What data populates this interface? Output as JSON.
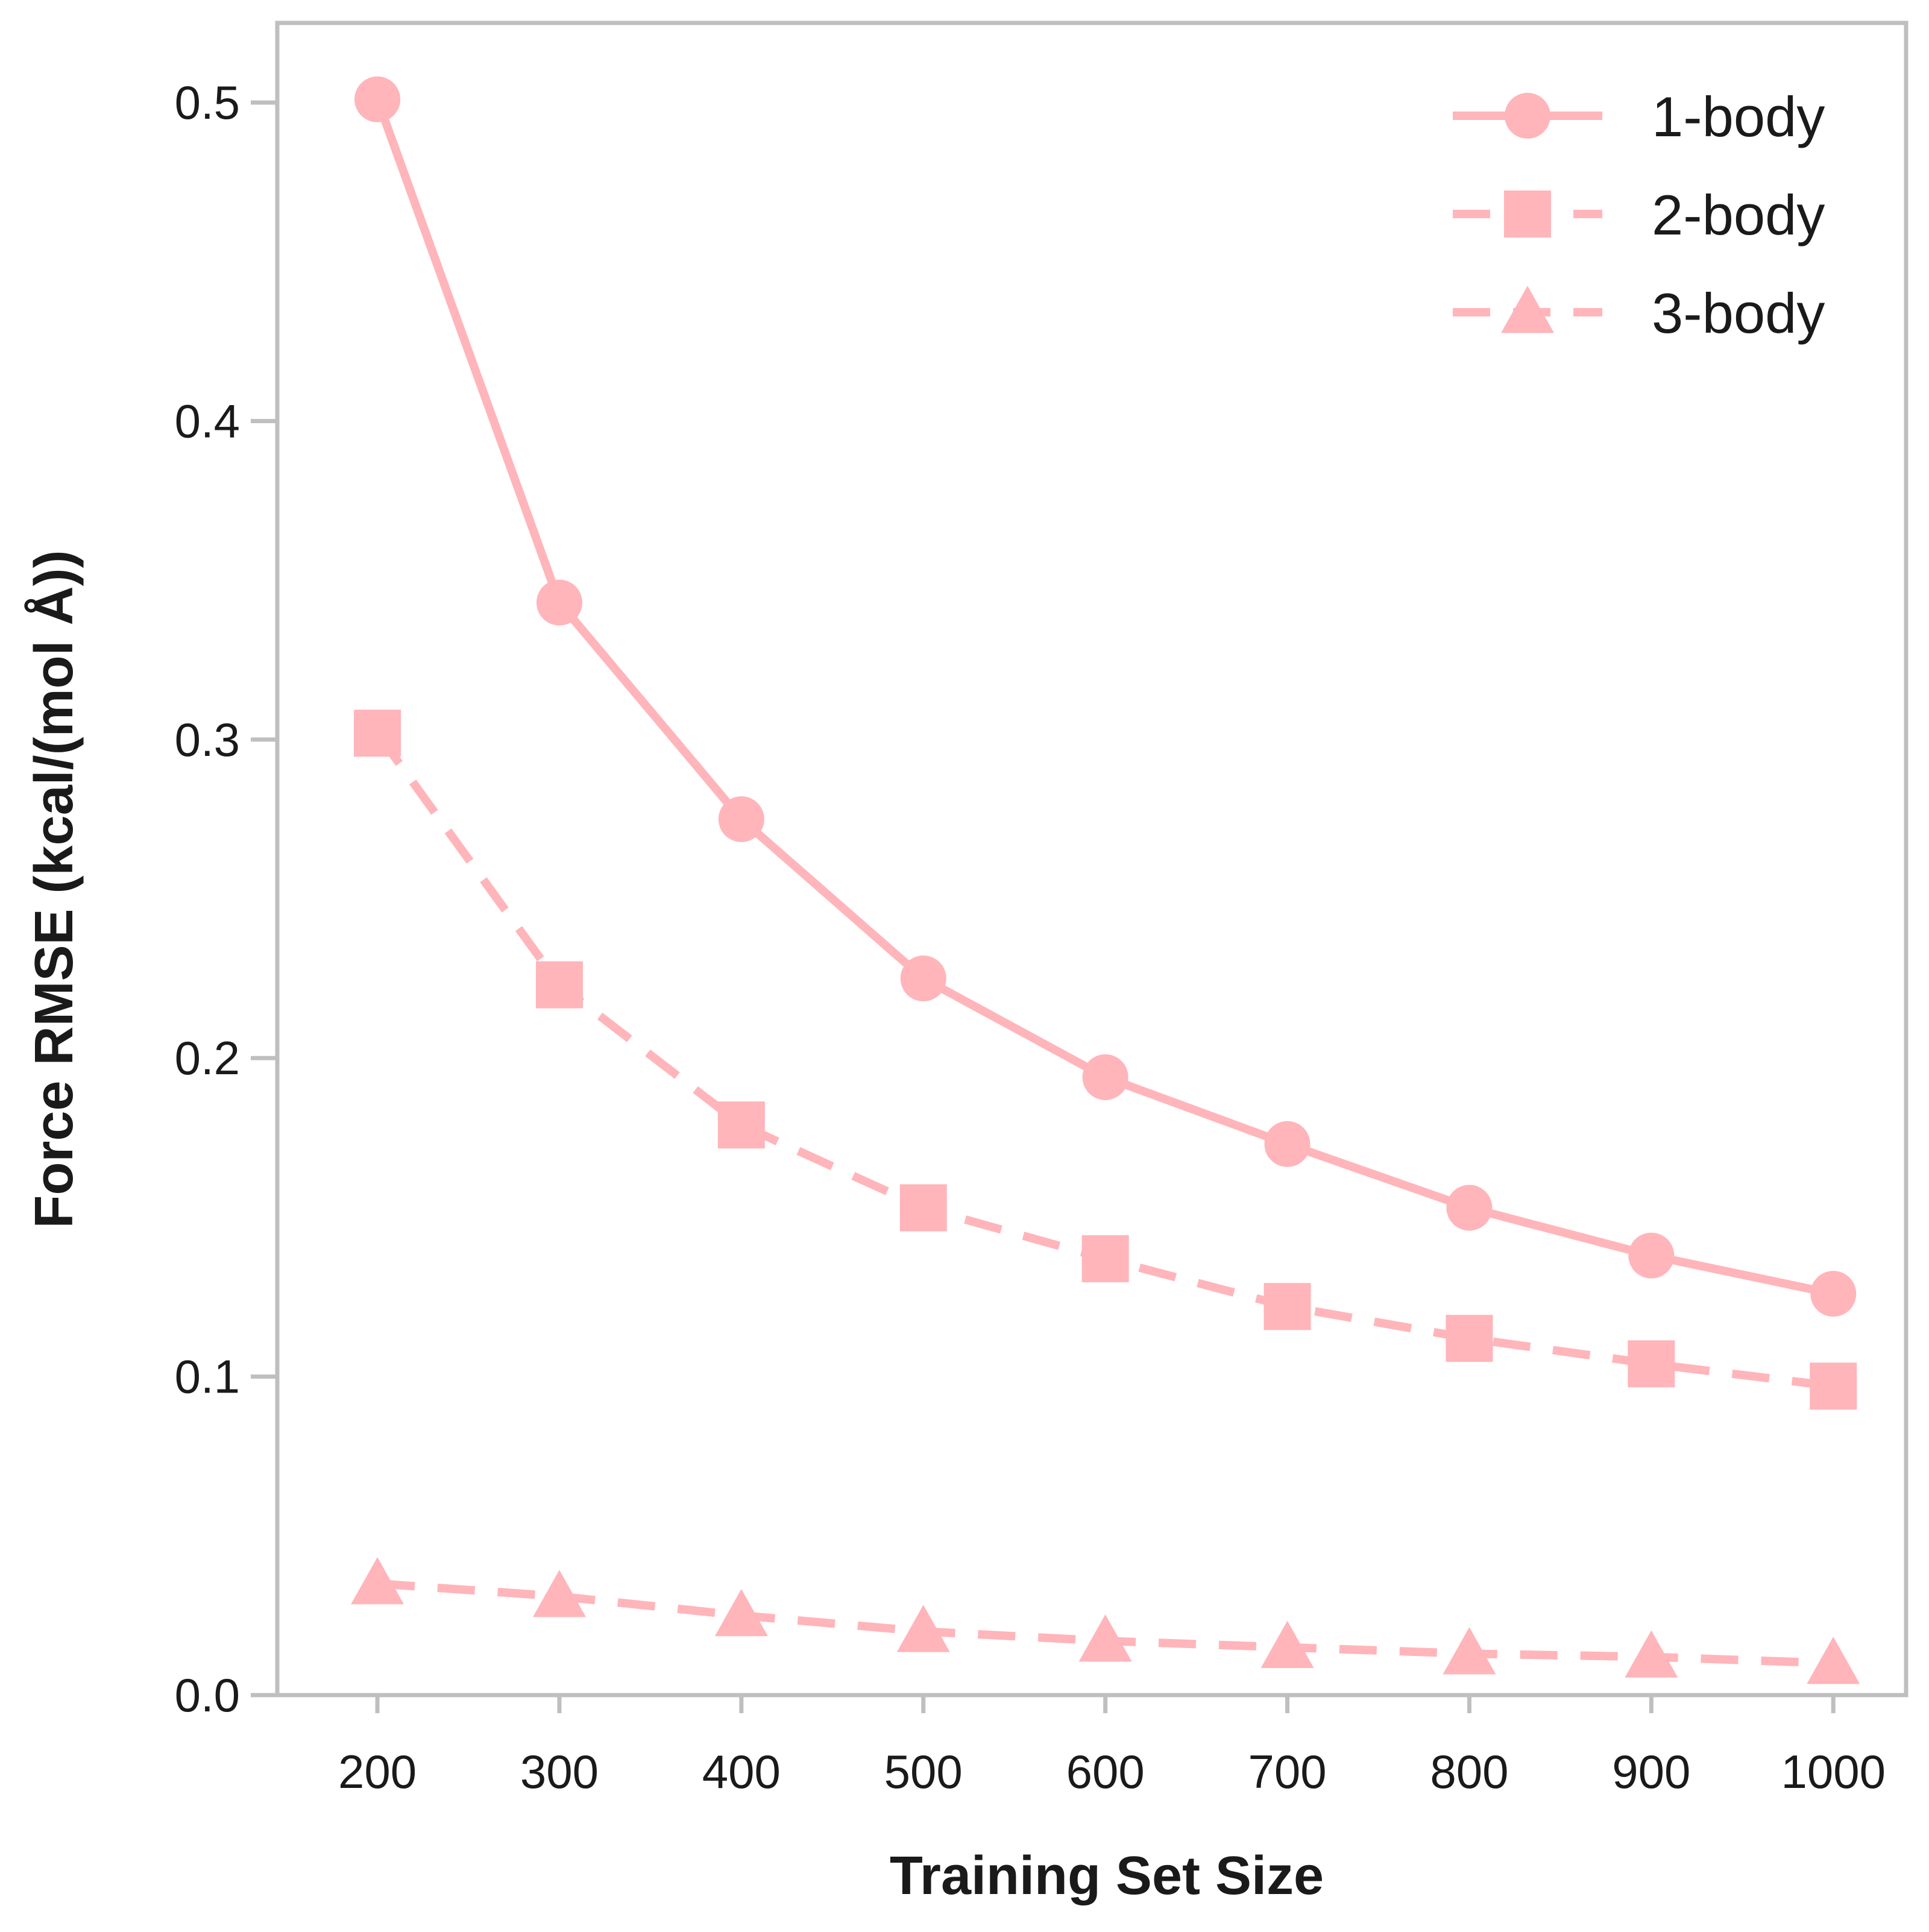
{
  "chart_data": {
    "type": "line",
    "xlabel": "Training Set Size",
    "ylabel": "Force RMSE (kcal/(mol Å))",
    "x": [
      200,
      300,
      400,
      500,
      600,
      700,
      800,
      900,
      1000
    ],
    "x_ticks": [
      "200",
      "300",
      "400",
      "500",
      "600",
      "700",
      "800",
      "900",
      "1000"
    ],
    "y_ticks": [
      "0.0",
      "0.1",
      "0.2",
      "0.3",
      "0.4",
      "0.5"
    ],
    "y_tick_values": [
      0.0,
      0.1,
      0.2,
      0.3,
      0.4,
      0.5
    ],
    "xlim": [
      145,
      1040
    ],
    "ylim": [
      0.0,
      0.525
    ],
    "grid": false,
    "legend_position": "top-right",
    "series": [
      {
        "name": "1-body",
        "marker": "circle",
        "line_style": "solid",
        "color": "#ffb5ba",
        "values": [
          0.501,
          0.343,
          0.275,
          0.225,
          0.194,
          0.173,
          0.153,
          0.138,
          0.126
        ]
      },
      {
        "name": "2-body",
        "marker": "square",
        "line_style": "dashed",
        "color": "#ffb5ba",
        "values": [
          0.302,
          0.223,
          0.179,
          0.153,
          0.137,
          0.122,
          0.112,
          0.104,
          0.097
        ]
      },
      {
        "name": "3-body",
        "marker": "triangle",
        "line_style": "dashed",
        "color": "#ffb5ba",
        "values": [
          0.035,
          0.031,
          0.025,
          0.02,
          0.017,
          0.015,
          0.013,
          0.012,
          0.01
        ]
      }
    ]
  }
}
